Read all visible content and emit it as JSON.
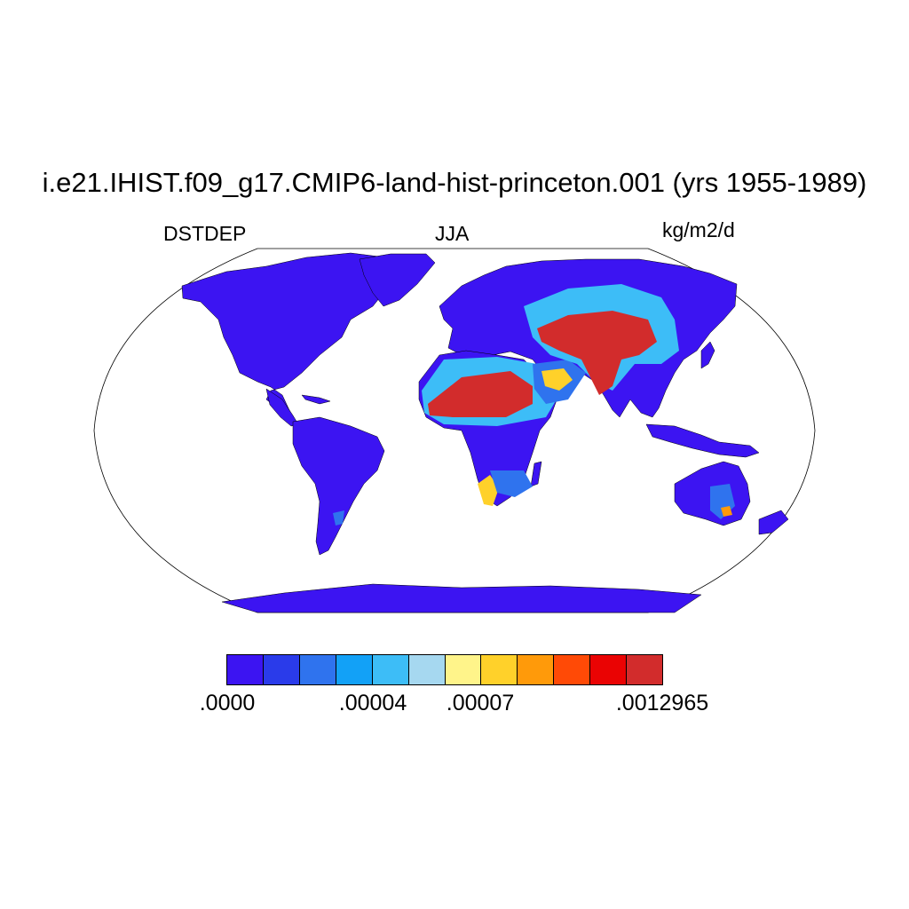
{
  "title": "i.e21.IHIST.f09_g17.CMIP6-land-hist-princeton.001 (yrs 1955-1989)",
  "left_label": "DSTDEP",
  "center_label": "JJA",
  "right_label": "kg/m2/d",
  "colorbar": {
    "colors": [
      "#3c14f2",
      "#2a3bea",
      "#2f73ee",
      "#12a1f7",
      "#3dbdf7",
      "#a6d8f0",
      "#fff48a",
      "#ffd12a",
      "#ff9a0a",
      "#ff4a06",
      "#ea0303",
      "#d22c2c"
    ],
    "tick_labels": [
      ".0000",
      ".00004",
      ".00007",
      ".0012965"
    ]
  },
  "map": {
    "projection": "Robinson",
    "season": "JJA",
    "variable": "DSTDEP",
    "features": [
      "land",
      "ocean",
      "coastlines"
    ]
  }
}
